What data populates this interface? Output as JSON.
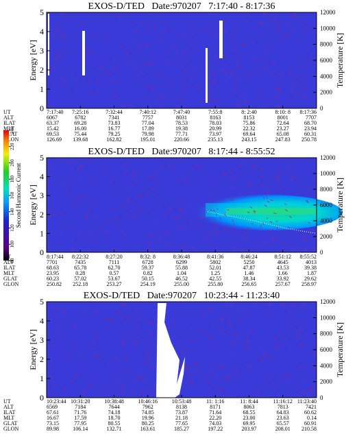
{
  "chart_data": [
    {
      "type": "spectrogram",
      "title": "EXOS-D/TED   Date:970207   7:17:40 - 8:17:36",
      "ylabel": "Energy [eV]",
      "ylim": [
        0,
        5
      ],
      "yticks": [
        0,
        1,
        2,
        3,
        4,
        5
      ],
      "y2label": "Temperature [K]",
      "y2lim": [
        0,
        12000
      ],
      "y2ticks": [
        0,
        2000,
        4000,
        6000,
        8000,
        10000,
        12000
      ],
      "table": [
        {
          "label": "UT",
          "values": [
            "7:17:40",
            "7:25:16",
            "7:32:44",
            "7:40:12",
            "7:47:40",
            "7:55:8",
            "8: 2:40",
            "8:10: 8",
            "8:17:36"
          ]
        },
        {
          "label": "ALT",
          "values": [
            "6067",
            "6782",
            "7341",
            "7757",
            "8031",
            "8163",
            "8153",
            "8001",
            "7707"
          ]
        },
        {
          "label": "ILAT",
          "values": [
            "63.37",
            "69.28",
            "73.83",
            "77.04",
            "78.53",
            "78.03",
            "75.86",
            "72.64",
            "68.70"
          ]
        },
        {
          "label": "MLT",
          "values": [
            "15.42",
            "16.00",
            "16.77",
            "17.89",
            "19.38",
            "20.99",
            "22.32",
            "23.27",
            "23.94"
          ]
        },
        {
          "label": "GLAT",
          "values": [
            "69.53",
            "75.44",
            "79.25",
            "79.98",
            "77.71",
            "73.97",
            "69.64",
            "65.08",
            "60.31"
          ]
        },
        {
          "label": "GLON",
          "values": [
            "126.69",
            "139.68",
            "162.82",
            "195.01",
            "220.66",
            "235.13",
            "243.15",
            "247.83",
            "250.78"
          ]
        }
      ]
    },
    {
      "type": "spectrogram",
      "title": "EXOS-D/TED   Date:970207   8:17:44 - 8:55:52",
      "ylabel": "Energy [eV]",
      "ylim": [
        0,
        5
      ],
      "yticks": [
        0,
        1,
        2,
        3,
        4,
        5
      ],
      "y2label": "Temperature [K]",
      "y2lim": [
        0,
        12000
      ],
      "y2ticks": [
        0,
        2000,
        4000,
        6000,
        8000,
        10000,
        12000
      ],
      "colorbar": {
        "label": "Second Harmonic Current",
        "lim": [
          80,
          240
        ],
        "ticks": [
          80,
          100,
          120,
          140,
          160,
          180,
          200,
          220,
          240
        ]
      },
      "table": [
        {
          "label": "UT",
          "values": [
            "8:17:44",
            "8:22:32",
            "8:27:20",
            "8:32: 8",
            "8:36:48",
            "8:41:36",
            "8:46:24",
            "8:51:12",
            "8:55:52"
          ]
        },
        {
          "label": "ALT",
          "values": [
            "7701",
            "7435",
            "7111",
            "6728",
            "6299",
            "5802",
            "5250",
            "4645",
            "4013"
          ]
        },
        {
          "label": "ILAT",
          "values": [
            "68.63",
            "65.78",
            "62.70",
            "59.37",
            "55.88",
            "52.01",
            "47.87",
            "43.53",
            "39.38"
          ]
        },
        {
          "label": "MLT",
          "values": [
            "23.95",
            "0.28",
            "0.57",
            "0.82",
            "1.04",
            "1.25",
            "1.46",
            "1.66",
            "1.87"
          ]
        },
        {
          "label": "GLAT",
          "values": [
            "60.23",
            "57.02",
            "53.67",
            "50.15",
            "46.52",
            "42.55",
            "38.34",
            "33.92",
            "29.62"
          ]
        },
        {
          "label": "GLON",
          "values": [
            "250.82",
            "252.18",
            "253.27",
            "254.19",
            "255.00",
            "255.80",
            "256.65",
            "257.67",
            "258.97"
          ]
        }
      ]
    },
    {
      "type": "spectrogram",
      "title": "EXOS-D/TED   Date:970207   10:23:44 - 11:23:40",
      "ylabel": "Energy [eV]",
      "ylim": [
        0,
        5
      ],
      "yticks": [
        0,
        1,
        2,
        3,
        4,
        5
      ],
      "y2label": "Temperature [K]",
      "y2lim": [
        0,
        12000
      ],
      "y2ticks": [
        0,
        2000,
        4000,
        6000,
        8000,
        10000,
        12000
      ],
      "table": [
        {
          "label": "UT",
          "values": [
            "10:23:44",
            "10:31:20",
            "10:38:48",
            "10:46:16",
            "10:53:48",
            "11: 1:16",
            "11: 8:44",
            "11:16:12",
            "11:23:40"
          ]
        },
        {
          "label": "ALT",
          "values": [
            "6569",
            "7184",
            "7644",
            "7962",
            "8138",
            "8171",
            "8063",
            "7813",
            "7421"
          ]
        },
        {
          "label": "ILAT",
          "values": [
            "67.61",
            "71.76",
            "74.18",
            "74.85",
            "73.87",
            "71.64",
            "68.55",
            "64.83",
            "60.62"
          ]
        },
        {
          "label": "MLT",
          "values": [
            "16.67",
            "17.59",
            "18.70",
            "19.96",
            "21.18",
            "22.20",
            "23.00",
            "23.63",
            "0.14"
          ]
        },
        {
          "label": "GLAT",
          "values": [
            "73.15",
            "77.95",
            "80.55",
            "80.25",
            "77.65",
            "74.03",
            "69.95",
            "65.57",
            "60.91"
          ]
        },
        {
          "label": "GLON",
          "values": [
            "89.98",
            "106.14",
            "132.71",
            "163.61",
            "185.27",
            "197.22",
            "203.97",
            "208.01",
            "210.58"
          ]
        }
      ]
    }
  ]
}
